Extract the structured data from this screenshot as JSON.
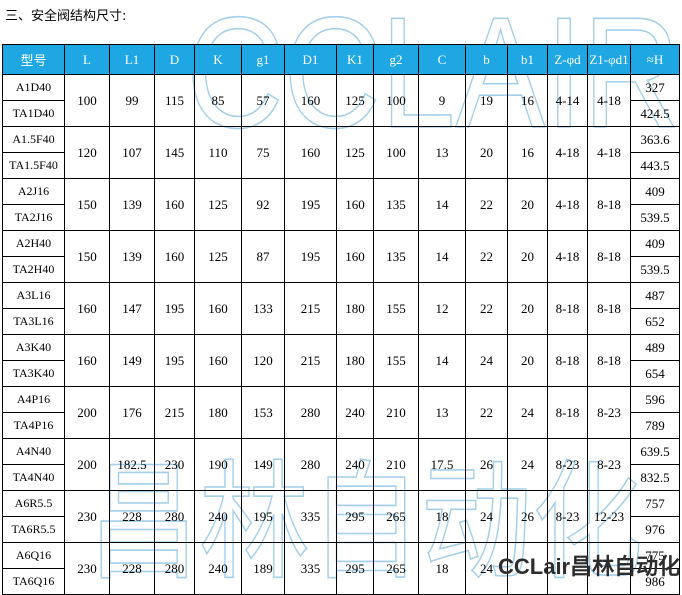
{
  "page": {
    "title": "三、安全阀结构尺寸:"
  },
  "watermarks": {
    "top": "CCLAIR",
    "middle": "昌林自动化"
  },
  "brand": {
    "label": "CCLair昌林自动化"
  },
  "colors": {
    "header_bg": "#1ea7e2",
    "header_text": "#ffffff",
    "border": "#000000",
    "watermark_outline": "#a5cfe9",
    "brand_text": "#2d2d2d"
  },
  "table": {
    "headers": [
      "型号",
      "L",
      "L1",
      "D",
      "K",
      "g1",
      "D1",
      "K1",
      "g2",
      "C",
      "b",
      "b1",
      "Z-φd",
      "Z1-φd1",
      "≈H"
    ],
    "groups": [
      {
        "models": [
          "A1D40",
          "TA1D40"
        ],
        "values": [
          "100",
          "99",
          "115",
          "85",
          "57",
          "160",
          "125",
          "100",
          "9",
          "19",
          "16",
          "4-14",
          "4-18"
        ],
        "heights": [
          "327",
          "424.5"
        ]
      },
      {
        "models": [
          "A1.5F40",
          "TA1.5F40"
        ],
        "values": [
          "120",
          "107",
          "145",
          "110",
          "75",
          "160",
          "125",
          "100",
          "13",
          "20",
          "16",
          "4-18",
          "4-18"
        ],
        "heights": [
          "363.6",
          "443.5"
        ]
      },
      {
        "models": [
          "A2J16",
          "TA2J16"
        ],
        "values": [
          "150",
          "139",
          "160",
          "125",
          "92",
          "195",
          "160",
          "135",
          "14",
          "22",
          "20",
          "4-18",
          "8-18"
        ],
        "heights": [
          "409",
          "539.5"
        ]
      },
      {
        "models": [
          "A2H40",
          "TA2H40"
        ],
        "values": [
          "150",
          "139",
          "160",
          "125",
          "87",
          "195",
          "160",
          "135",
          "14",
          "22",
          "20",
          "4-18",
          "8-18"
        ],
        "heights": [
          "409",
          "539.5"
        ]
      },
      {
        "models": [
          "A3L16",
          "TA3L16"
        ],
        "values": [
          "160",
          "147",
          "195",
          "160",
          "133",
          "215",
          "180",
          "155",
          "12",
          "22",
          "20",
          "8-18",
          "8-18"
        ],
        "heights": [
          "487",
          "652"
        ]
      },
      {
        "models": [
          "A3K40",
          "TA3K40"
        ],
        "values": [
          "160",
          "149",
          "195",
          "160",
          "120",
          "215",
          "180",
          "155",
          "14",
          "24",
          "20",
          "8-18",
          "8-18"
        ],
        "heights": [
          "489",
          "654"
        ]
      },
      {
        "models": [
          "A4P16",
          "TA4P16"
        ],
        "values": [
          "200",
          "176",
          "215",
          "180",
          "153",
          "280",
          "240",
          "210",
          "13",
          "22",
          "24",
          "8-18",
          "8-23"
        ],
        "heights": [
          "596",
          "789"
        ]
      },
      {
        "models": [
          "A4N40",
          "TA4N40"
        ],
        "values": [
          "200",
          "182.5",
          "230",
          "190",
          "149",
          "280",
          "240",
          "210",
          "17.5",
          "26",
          "24",
          "8-23",
          "8-23"
        ],
        "heights": [
          "639.5",
          "832.5"
        ]
      },
      {
        "models": [
          "A6R5.5",
          "TA6R5.5"
        ],
        "values": [
          "230",
          "228",
          "280",
          "240",
          "195",
          "335",
          "295",
          "265",
          "18",
          "24",
          "26",
          "8-23",
          "12-23"
        ],
        "heights": [
          "757",
          "976"
        ]
      },
      {
        "models": [
          "A6Q16",
          "TA6Q16"
        ],
        "values": [
          "230",
          "228",
          "280",
          "240",
          "189",
          "335",
          "295",
          "265",
          "18",
          "24",
          "",
          "",
          ""
        ],
        "heights": [
          "775",
          "986"
        ]
      }
    ]
  }
}
